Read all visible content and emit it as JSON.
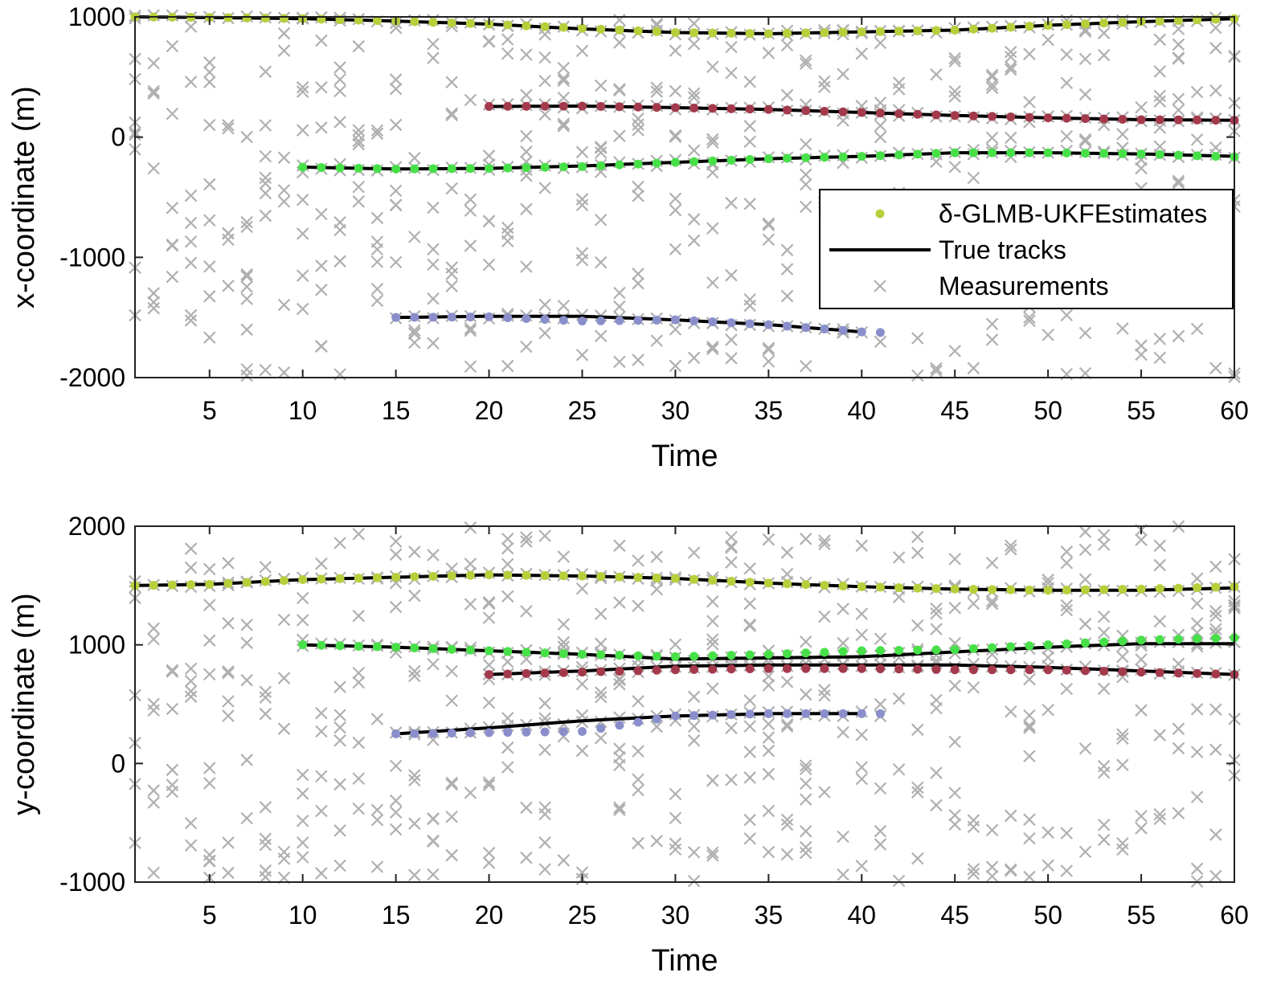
{
  "chart_data": [
    {
      "type": "scatter",
      "xlabel": "Time",
      "ylabel": "x-coordinate (m)",
      "xlim": [
        1,
        60
      ],
      "ylim": [
        -2000,
        1000
      ],
      "xticks": [
        5,
        10,
        15,
        20,
        25,
        30,
        35,
        40,
        45,
        50,
        55,
        60
      ],
      "yticks": [
        -2000,
        -1000,
        0,
        1000
      ],
      "grid": false,
      "legend": {
        "placement": "center-right",
        "entries": [
          {
            "label": "δ-GLMB-UKFEstimates",
            "symbol": "dot",
            "color": "#b7cf3a"
          },
          {
            "label": "True tracks",
            "symbol": "line",
            "color": "#000000"
          },
          {
            "label": "Measurements",
            "symbol": "cross",
            "color": "#b0b0b0"
          }
        ]
      },
      "tracks": [
        {
          "color": "#b7cf3a",
          "t": [
            1,
            5,
            10,
            15,
            20,
            25,
            30,
            35,
            40,
            45,
            50,
            55,
            60
          ],
          "true": [
            1000,
            995,
            985,
            965,
            940,
            900,
            870,
            860,
            875,
            890,
            930,
            960,
            985
          ],
          "est": [
            1000,
            995,
            985,
            965,
            940,
            905,
            870,
            860,
            875,
            890,
            930,
            960,
            985
          ]
        },
        {
          "color": "#a33a4c",
          "t": [
            20,
            25,
            30,
            35,
            40,
            45,
            50,
            55,
            60
          ],
          "true": [
            255,
            258,
            245,
            230,
            205,
            180,
            160,
            145,
            140
          ],
          "est": [
            255,
            258,
            245,
            230,
            205,
            180,
            160,
            145,
            140
          ]
        },
        {
          "color": "#48e048",
          "t": [
            10,
            15,
            20,
            25,
            30,
            35,
            40,
            45,
            50,
            55,
            60
          ],
          "true": [
            -250,
            -265,
            -260,
            -240,
            -210,
            -180,
            -160,
            -130,
            -130,
            -140,
            -160
          ],
          "est": [
            -250,
            -265,
            -260,
            -245,
            -210,
            -180,
            -160,
            -130,
            -130,
            -140,
            -165
          ]
        },
        {
          "color": "#8a8fcc",
          "t": [
            15,
            20,
            25,
            30,
            35,
            40
          ],
          "true": [
            -1500,
            -1490,
            -1490,
            -1520,
            -1560,
            -1620
          ],
          "est": [
            -1500,
            -1495,
            -1530,
            -1520,
            -1560,
            -1620
          ],
          "est_extra_t": 41,
          "est_extra_v": -1625
        }
      ],
      "measurements_per_step": 8
    },
    {
      "type": "scatter",
      "xlabel": "Time",
      "ylabel": "y-coordinate (m)",
      "xlim": [
        1,
        60
      ],
      "ylim": [
        -1000,
        2000
      ],
      "xticks": [
        5,
        10,
        15,
        20,
        25,
        30,
        35,
        40,
        45,
        50,
        55,
        60
      ],
      "yticks": [
        -1000,
        0,
        1000,
        2000
      ],
      "grid": false,
      "tracks": [
        {
          "color": "#b7cf3a",
          "t": [
            1,
            5,
            10,
            15,
            20,
            25,
            30,
            35,
            40,
            45,
            50,
            55,
            60
          ],
          "true": [
            1500,
            1510,
            1550,
            1570,
            1590,
            1580,
            1560,
            1520,
            1490,
            1470,
            1460,
            1460,
            1480
          ],
          "est": [
            1500,
            1510,
            1550,
            1570,
            1590,
            1580,
            1560,
            1520,
            1490,
            1470,
            1460,
            1470,
            1490
          ]
        },
        {
          "color": "#48e048",
          "t": [
            10,
            15,
            20,
            25,
            30,
            35,
            40,
            45,
            50,
            55,
            60
          ],
          "true": [
            1000,
            980,
            950,
            920,
            880,
            890,
            900,
            940,
            980,
            1010,
            1010
          ],
          "est": [
            1000,
            980,
            950,
            920,
            900,
            920,
            950,
            960,
            1000,
            1040,
            1060
          ]
        },
        {
          "color": "#a33a4c",
          "t": [
            20,
            25,
            30,
            35,
            40,
            45,
            50,
            55,
            60
          ],
          "true": [
            750,
            780,
            820,
            830,
            830,
            830,
            810,
            780,
            750
          ],
          "est": [
            750,
            770,
            790,
            800,
            800,
            790,
            790,
            770,
            750
          ]
        },
        {
          "color": "#8a8fcc",
          "t": [
            15,
            20,
            25,
            30,
            35,
            40
          ],
          "true": [
            250,
            300,
            360,
            400,
            420,
            420
          ],
          "est": [
            250,
            260,
            270,
            400,
            420,
            420
          ],
          "est_extra_t": 41,
          "est_extra_v": 420
        }
      ],
      "measurements_per_step": 8
    }
  ]
}
